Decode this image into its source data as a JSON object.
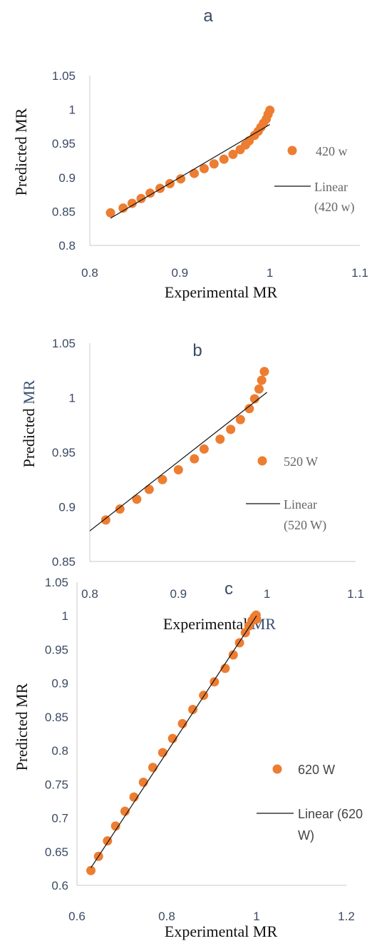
{
  "chart_data": [
    {
      "type": "scatter",
      "panel_label": "a",
      "xlabel": "Experimental MR",
      "ylabel": "Predicted MR",
      "xlim": [
        0.8,
        1.1
      ],
      "ylim": [
        0.8,
        1.05
      ],
      "x_ticks": [
        "0.8",
        "0.9",
        "1",
        "1.1"
      ],
      "y_ticks": [
        "0.8",
        "0.85",
        "0.9",
        "0.95",
        "1",
        "1.05"
      ],
      "grid": false,
      "legend_position": "right",
      "series": [
        {
          "name": "420 w",
          "kind": "points",
          "color": "#ED7D31",
          "x": [
            0.823,
            0.837,
            0.847,
            0.857,
            0.867,
            0.878,
            0.889,
            0.901,
            0.916,
            0.927,
            0.938,
            0.949,
            0.959,
            0.967,
            0.973,
            0.977,
            0.983,
            0.987,
            0.99,
            0.993,
            0.996,
            0.998,
            1.0
          ],
          "y": [
            0.848,
            0.855,
            0.862,
            0.869,
            0.877,
            0.884,
            0.891,
            0.898,
            0.906,
            0.913,
            0.92,
            0.927,
            0.934,
            0.941,
            0.948,
            0.954,
            0.962,
            0.968,
            0.974,
            0.98,
            0.986,
            0.993,
            0.999
          ]
        },
        {
          "name": "Linear (420 w)",
          "kind": "trendline",
          "color": "#111111",
          "x": [
            0.823,
            1.0
          ],
          "y": [
            0.84,
            0.978
          ]
        }
      ]
    },
    {
      "type": "scatter",
      "panel_label": "b",
      "xlabel_parts": [
        "Experimental ",
        "MR"
      ],
      "ylabel_parts": [
        "Predicted ",
        "MR"
      ],
      "xlim": [
        0.8,
        1.1
      ],
      "ylim": [
        0.85,
        1.05
      ],
      "x_ticks": [
        "0.8",
        "0.9",
        "1",
        "1.1"
      ],
      "y_ticks": [
        "0.85",
        "0.9",
        "0.95",
        "1",
        "1.05"
      ],
      "grid": false,
      "legend_position": "right",
      "series": [
        {
          "name": "520 W",
          "kind": "points",
          "color": "#ED7D31",
          "x": [
            0.818,
            0.834,
            0.853,
            0.867,
            0.882,
            0.9,
            0.918,
            0.929,
            0.947,
            0.959,
            0.97,
            0.98,
            0.986,
            0.991,
            0.994,
            0.997
          ],
          "y": [
            0.888,
            0.898,
            0.907,
            0.916,
            0.925,
            0.934,
            0.944,
            0.953,
            0.962,
            0.971,
            0.98,
            0.99,
            0.999,
            1.008,
            1.016,
            1.024
          ]
        },
        {
          "name": "Linear (520 W)",
          "kind": "trendline",
          "color": "#111111",
          "x": [
            0.8,
            1.0
          ],
          "y": [
            0.878,
            1.005
          ]
        }
      ]
    },
    {
      "type": "scatter",
      "panel_label": "c",
      "xlabel": "Experimental MR",
      "ylabel": "Predicted MR",
      "xlim": [
        0.6,
        1.2
      ],
      "ylim": [
        0.6,
        1.05
      ],
      "x_ticks": [
        "0.6",
        "0.8",
        "1",
        "1.2"
      ],
      "y_ticks": [
        "0.6",
        "0.65",
        "0.7",
        "0.75",
        "0.8",
        "0.85",
        "0.9",
        "0.95",
        "1",
        "1.05"
      ],
      "grid": false,
      "legend_position": "right",
      "series": [
        {
          "name": "620 W",
          "kind": "points",
          "color": "#ED7D31",
          "x": [
            0.631,
            0.648,
            0.668,
            0.686,
            0.707,
            0.727,
            0.748,
            0.769,
            0.791,
            0.813,
            0.835,
            0.858,
            0.882,
            0.906,
            0.93,
            0.948,
            0.962,
            0.975,
            0.983,
            0.99,
            0.995,
            0.999,
            1.0
          ],
          "y": [
            0.622,
            0.643,
            0.666,
            0.688,
            0.71,
            0.731,
            0.753,
            0.775,
            0.797,
            0.818,
            0.84,
            0.861,
            0.882,
            0.902,
            0.922,
            0.942,
            0.96,
            0.975,
            0.985,
            0.993,
            0.998,
            1.001,
            0.995
          ]
        },
        {
          "name": "Linear (620 W)",
          "kind": "trendline",
          "color": "#111111",
          "x": [
            0.631,
            1.0
          ],
          "y": [
            0.626,
            1.0
          ]
        }
      ]
    }
  ]
}
